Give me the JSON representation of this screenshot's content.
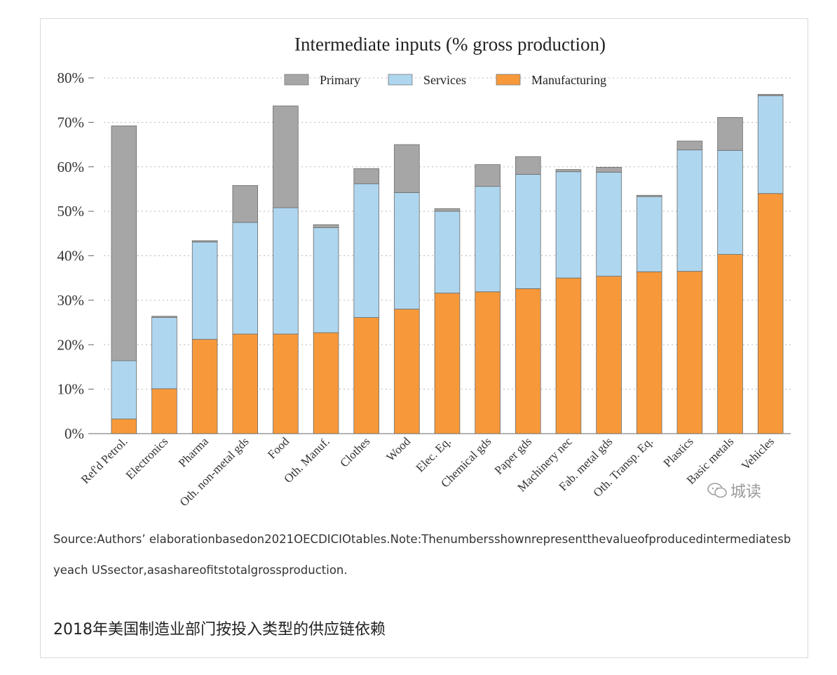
{
  "chart_data": {
    "type": "bar",
    "stacked": true,
    "title": "Intermediate inputs (% gross production)",
    "categories": [
      "Ref'd Petrol.",
      "Electronics",
      "Pharma",
      "Oth. non-metal gds",
      "Food",
      "Oth. Manuf.",
      "Clothes",
      "Wood",
      "Elec. Eq.",
      "Chemical gds",
      "Paper gds",
      "Machinery nec",
      "Fab. metal gds",
      "Oth. Transp. Eq.",
      "Plastics",
      "Basic metals",
      "Vehicles"
    ],
    "series": [
      {
        "name": "Manufacturing",
        "color": "#f7993a",
        "values": [
          3.3,
          10.1,
          21.2,
          22.4,
          22.4,
          22.7,
          26.1,
          28.0,
          31.6,
          31.9,
          32.6,
          35.0,
          35.4,
          36.4,
          36.5,
          40.3,
          54.0
        ]
      },
      {
        "name": "Services",
        "color": "#aed6ef",
        "values": [
          13.1,
          16.0,
          21.9,
          25.1,
          28.4,
          23.6,
          30.1,
          26.2,
          18.4,
          23.7,
          25.7,
          23.9,
          23.4,
          16.9,
          27.3,
          23.4,
          22.0
        ]
      },
      {
        "name": "Primary",
        "color": "#a6a6a6",
        "values": [
          52.8,
          0.3,
          0.3,
          8.3,
          22.9,
          0.7,
          3.4,
          10.8,
          0.6,
          4.9,
          4.0,
          0.5,
          1.1,
          0.3,
          2.0,
          7.4,
          0.3
        ]
      }
    ],
    "legend_order": [
      "Primary",
      "Services",
      "Manufacturing"
    ],
    "legend_position": "top-center",
    "ylim": [
      0,
      80
    ],
    "yticks": [
      "0%",
      "10%",
      "20%",
      "30%",
      "40%",
      "50%",
      "60%",
      "70%",
      "80%"
    ],
    "xlabel": "",
    "ylabel": "",
    "grid": "horizontal-dotted"
  },
  "source_note": "Source:Authors’ elaborationbasedon2021OECDICIOtables.Note:Thenumbersshownrepresentthevalueofproducedintermediatesbyeach USsector,asashareofitstotalgrossproduction.",
  "caption": "2018年美国制造业部门按投入类型的供应链依赖",
  "watermark": {
    "text": "城读",
    "icon": "wechat-icon"
  }
}
